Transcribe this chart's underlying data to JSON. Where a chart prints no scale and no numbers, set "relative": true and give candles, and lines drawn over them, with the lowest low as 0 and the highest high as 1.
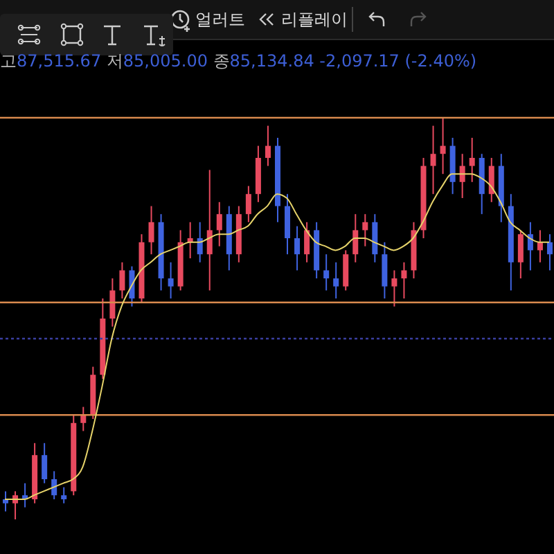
{
  "chart_data": {
    "type": "candlestick",
    "relative": true,
    "tick_labels": false,
    "annotations": [
      "얼러트",
      "리플레이",
      "고87,515.67 저85,005.00 종85,134.84 -2,097.17 (-2.40%)"
    ],
    "categories": [
      null,
      null,
      null,
      null,
      null,
      null,
      null,
      null,
      null,
      null,
      null,
      null,
      null,
      null,
      null,
      null,
      null,
      null,
      null,
      null,
      null,
      null,
      null,
      null,
      null,
      null,
      null,
      null,
      null,
      null,
      null,
      null,
      null,
      null,
      null,
      null,
      null,
      null,
      null,
      null,
      null,
      null,
      null,
      null,
      null,
      null,
      null,
      null,
      null,
      null,
      null,
      null,
      null,
      null,
      null,
      null,
      null
    ],
    "ohlc": [
      [
        0.05,
        0.07,
        0.02,
        0.04
      ],
      [
        0.04,
        0.07,
        0.0,
        0.06
      ],
      [
        0.06,
        0.09,
        0.03,
        0.05
      ],
      [
        0.05,
        0.19,
        0.04,
        0.16
      ],
      [
        0.16,
        0.19,
        0.09,
        0.1
      ],
      [
        0.1,
        0.12,
        0.05,
        0.06
      ],
      [
        0.06,
        0.08,
        0.04,
        0.05
      ],
      [
        0.07,
        0.26,
        0.06,
        0.24
      ],
      [
        0.24,
        0.28,
        0.22,
        0.26
      ],
      [
        0.26,
        0.38,
        0.25,
        0.36
      ],
      [
        0.36,
        0.55,
        0.35,
        0.5
      ],
      [
        0.5,
        0.6,
        0.48,
        0.57
      ],
      [
        0.57,
        0.64,
        0.55,
        0.62
      ],
      [
        0.62,
        0.63,
        0.53,
        0.55
      ],
      [
        0.55,
        0.71,
        0.54,
        0.69
      ],
      [
        0.69,
        0.78,
        0.66,
        0.74
      ],
      [
        0.74,
        0.76,
        0.57,
        0.6
      ],
      [
        0.6,
        0.64,
        0.55,
        0.58
      ],
      [
        0.58,
        0.72,
        0.57,
        0.69
      ],
      [
        0.69,
        0.74,
        0.65,
        0.7
      ],
      [
        0.7,
        0.74,
        0.64,
        0.66
      ],
      [
        0.66,
        0.87,
        0.57,
        0.72
      ],
      [
        0.72,
        0.79,
        0.68,
        0.76
      ],
      [
        0.76,
        0.78,
        0.62,
        0.66
      ],
      [
        0.66,
        0.78,
        0.64,
        0.76
      ],
      [
        0.76,
        0.83,
        0.74,
        0.81
      ],
      [
        0.81,
        0.93,
        0.79,
        0.9
      ],
      [
        0.9,
        0.98,
        0.88,
        0.93
      ],
      [
        0.93,
        0.95,
        0.74,
        0.78
      ],
      [
        0.78,
        0.81,
        0.66,
        0.7
      ],
      [
        0.7,
        0.73,
        0.62,
        0.66
      ],
      [
        0.66,
        0.74,
        0.64,
        0.72
      ],
      [
        0.72,
        0.74,
        0.6,
        0.62
      ],
      [
        0.62,
        0.66,
        0.57,
        0.6
      ],
      [
        0.6,
        0.64,
        0.55,
        0.58
      ],
      [
        0.58,
        0.67,
        0.57,
        0.66
      ],
      [
        0.66,
        0.76,
        0.64,
        0.72
      ],
      [
        0.72,
        0.76,
        0.68,
        0.74
      ],
      [
        0.74,
        0.76,
        0.64,
        0.66
      ],
      [
        0.66,
        0.69,
        0.55,
        0.58
      ],
      [
        0.58,
        0.62,
        0.53,
        0.6
      ],
      [
        0.6,
        0.64,
        0.55,
        0.62
      ],
      [
        0.62,
        0.74,
        0.6,
        0.72
      ],
      [
        0.72,
        0.9,
        0.7,
        0.88
      ],
      [
        0.88,
        0.98,
        0.81,
        0.91
      ],
      [
        0.91,
        1.0,
        0.86,
        0.93
      ],
      [
        0.93,
        0.95,
        0.81,
        0.84
      ],
      [
        0.84,
        0.91,
        0.8,
        0.88
      ],
      [
        0.88,
        0.95,
        0.84,
        0.9
      ],
      [
        0.9,
        0.91,
        0.76,
        0.81
      ],
      [
        0.81,
        0.9,
        0.79,
        0.88
      ],
      [
        0.88,
        0.91,
        0.74,
        0.78
      ],
      [
        0.78,
        0.81,
        0.57,
        0.64
      ],
      [
        0.64,
        0.72,
        0.6,
        0.71
      ],
      [
        0.71,
        0.74,
        0.62,
        0.67
      ],
      [
        0.67,
        0.72,
        0.64,
        0.69
      ],
      [
        0.69,
        0.71,
        0.62,
        0.66
      ]
    ],
    "colors": [
      "#3f63e0",
      "#e84a5f",
      "#3f63e0",
      "#e84a5f",
      "#3f63e0",
      "#3f63e0",
      "#3f63e0",
      "#e84a5f",
      "#e84a5f",
      "#e84a5f",
      "#e84a5f",
      "#e84a5f",
      "#e84a5f",
      "#3f63e0",
      "#e84a5f",
      "#e84a5f",
      "#3f63e0",
      "#3f63e0",
      "#e84a5f",
      "#e84a5f",
      "#3f63e0",
      "#e84a5f",
      "#e84a5f",
      "#3f63e0",
      "#e84a5f",
      "#e84a5f",
      "#e84a5f",
      "#e84a5f",
      "#3f63e0",
      "#3f63e0",
      "#3f63e0",
      "#e84a5f",
      "#3f63e0",
      "#3f63e0",
      "#3f63e0",
      "#e84a5f",
      "#e84a5f",
      "#e84a5f",
      "#3f63e0",
      "#3f63e0",
      "#e84a5f",
      "#e84a5f",
      "#e84a5f",
      "#e84a5f",
      "#e84a5f",
      "#e84a5f",
      "#3f63e0",
      "#e84a5f",
      "#e84a5f",
      "#3f63e0",
      "#e84a5f",
      "#3f63e0",
      "#3f63e0",
      "#e84a5f",
      "#3f63e0",
      "#e84a5f",
      "#3f63e0"
    ],
    "series": [
      {
        "type": "line",
        "color": "#e6d36a",
        "values": [
          0.05,
          0.05,
          0.05,
          0.06,
          0.07,
          0.08,
          0.09,
          0.1,
          0.13,
          0.22,
          0.33,
          0.45,
          0.53,
          0.58,
          0.62,
          0.64,
          0.66,
          0.67,
          0.68,
          0.69,
          0.69,
          0.7,
          0.71,
          0.71,
          0.72,
          0.73,
          0.76,
          0.78,
          0.81,
          0.8,
          0.76,
          0.72,
          0.69,
          0.68,
          0.67,
          0.68,
          0.7,
          0.7,
          0.69,
          0.68,
          0.67,
          0.68,
          0.7,
          0.74,
          0.79,
          0.83,
          0.86,
          0.86,
          0.86,
          0.85,
          0.83,
          0.79,
          0.74,
          0.72,
          0.7,
          0.69,
          0.69
        ]
      }
    ],
    "ref_lines": [
      {
        "axis": "y",
        "value": 1.0,
        "color": "#d98a4e",
        "line_style": "solid"
      },
      {
        "axis": "y",
        "value": 0.54,
        "color": "#d98a4e",
        "line_style": "solid"
      },
      {
        "axis": "y",
        "value": 0.45,
        "color": "#3a3fa0",
        "line_style": "dotted"
      },
      {
        "axis": "y",
        "value": 0.26,
        "color": "#d98a4e",
        "line_style": "solid"
      }
    ]
  }
}
